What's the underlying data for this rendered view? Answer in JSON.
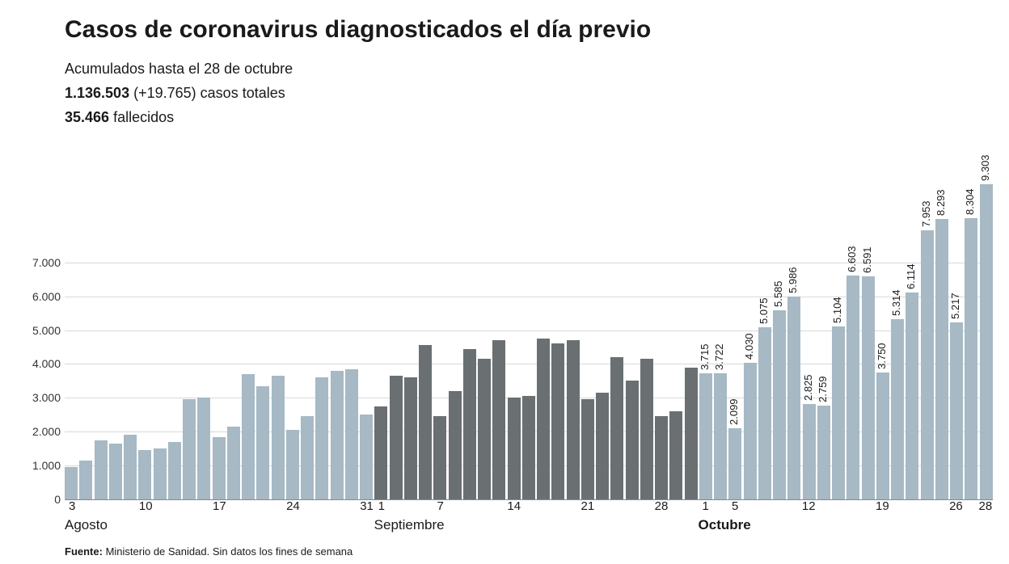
{
  "title": "Casos de coronavirus diagnosticados el día previo",
  "subtitle": {
    "line1": "Acumulados hasta el 28 de octubre",
    "total_cases": "1.136.503",
    "increment": "(+19.765)",
    "cases_suffix": "casos totales",
    "deaths": "35.466",
    "deaths_suffix": "fallecidos"
  },
  "chart": {
    "type": "bar",
    "y": {
      "min": 0,
      "max": 9500,
      "ticks": [
        0,
        1000,
        2000,
        3000,
        4000,
        5000,
        6000,
        7000
      ],
      "tick_labels": [
        "0",
        "1.000",
        "2.000",
        "3.000",
        "4.000",
        "5.000",
        "6.000",
        "7.000"
      ]
    },
    "colors": {
      "light": "#a6b9c4",
      "dark": "#6a6f72",
      "grid": "#d9d9d9",
      "text": "#1a1a1a",
      "background": "#ffffff"
    },
    "label_fontsize": 13,
    "axis_fontsize": 15,
    "title_fontsize": 30,
    "subtitle_fontsize": 18,
    "bars": [
      {
        "month": "Agosto",
        "day": 3,
        "value": 950,
        "color": "light"
      },
      {
        "month": "Agosto",
        "day": 4,
        "value": 1150,
        "color": "light"
      },
      {
        "month": "Agosto",
        "day": 5,
        "value": 1750,
        "color": "light"
      },
      {
        "month": "Agosto",
        "day": 6,
        "value": 1650,
        "color": "light"
      },
      {
        "month": "Agosto",
        "day": 7,
        "value": 1900,
        "color": "light"
      },
      {
        "month": "Agosto",
        "day": 10,
        "value": 1450,
        "color": "light"
      },
      {
        "month": "Agosto",
        "day": 11,
        "value": 1500,
        "color": "light"
      },
      {
        "month": "Agosto",
        "day": 12,
        "value": 1700,
        "color": "light"
      },
      {
        "month": "Agosto",
        "day": 13,
        "value": 2950,
        "color": "light"
      },
      {
        "month": "Agosto",
        "day": 14,
        "value": 3000,
        "color": "light"
      },
      {
        "month": "Agosto",
        "day": 17,
        "value": 1850,
        "color": "light"
      },
      {
        "month": "Agosto",
        "day": 18,
        "value": 2150,
        "color": "light"
      },
      {
        "month": "Agosto",
        "day": 19,
        "value": 3700,
        "color": "light"
      },
      {
        "month": "Agosto",
        "day": 20,
        "value": 3350,
        "color": "light"
      },
      {
        "month": "Agosto",
        "day": 21,
        "value": 3650,
        "color": "light"
      },
      {
        "month": "Agosto",
        "day": 24,
        "value": 2050,
        "color": "light"
      },
      {
        "month": "Agosto",
        "day": 25,
        "value": 2450,
        "color": "light"
      },
      {
        "month": "Agosto",
        "day": 26,
        "value": 3600,
        "color": "light"
      },
      {
        "month": "Agosto",
        "day": 27,
        "value": 3800,
        "color": "light"
      },
      {
        "month": "Agosto",
        "day": 28,
        "value": 3850,
        "color": "light"
      },
      {
        "month": "Agosto",
        "day": 31,
        "value": 2500,
        "color": "light"
      },
      {
        "month": "Septiembre",
        "day": 1,
        "value": 2750,
        "color": "dark"
      },
      {
        "month": "Septiembre",
        "day": 2,
        "value": 3650,
        "color": "dark"
      },
      {
        "month": "Septiembre",
        "day": 3,
        "value": 3600,
        "color": "dark"
      },
      {
        "month": "Septiembre",
        "day": 4,
        "value": 4550,
        "color": "dark"
      },
      {
        "month": "Septiembre",
        "day": 7,
        "value": 2450,
        "color": "dark"
      },
      {
        "month": "Septiembre",
        "day": 8,
        "value": 3200,
        "color": "dark"
      },
      {
        "month": "Septiembre",
        "day": 9,
        "value": 4450,
        "color": "dark"
      },
      {
        "month": "Septiembre",
        "day": 10,
        "value": 4150,
        "color": "dark"
      },
      {
        "month": "Septiembre",
        "day": 11,
        "value": 4700,
        "color": "dark"
      },
      {
        "month": "Septiembre",
        "day": 14,
        "value": 3000,
        "color": "dark"
      },
      {
        "month": "Septiembre",
        "day": 15,
        "value": 3050,
        "color": "dark"
      },
      {
        "month": "Septiembre",
        "day": 16,
        "value": 4750,
        "color": "dark"
      },
      {
        "month": "Septiembre",
        "day": 17,
        "value": 4600,
        "color": "dark"
      },
      {
        "month": "Septiembre",
        "day": 18,
        "value": 4700,
        "color": "dark"
      },
      {
        "month": "Septiembre",
        "day": 21,
        "value": 2950,
        "color": "dark"
      },
      {
        "month": "Septiembre",
        "day": 22,
        "value": 3150,
        "color": "dark"
      },
      {
        "month": "Septiembre",
        "day": 23,
        "value": 4200,
        "color": "dark"
      },
      {
        "month": "Septiembre",
        "day": 24,
        "value": 3500,
        "color": "dark"
      },
      {
        "month": "Septiembre",
        "day": 25,
        "value": 4150,
        "color": "dark"
      },
      {
        "month": "Septiembre",
        "day": 28,
        "value": 2450,
        "color": "dark"
      },
      {
        "month": "Septiembre",
        "day": 29,
        "value": 2600,
        "color": "dark"
      },
      {
        "month": "Septiembre",
        "day": 30,
        "value": 3900,
        "color": "dark"
      },
      {
        "month": "Octubre",
        "day": 1,
        "value": 3715,
        "color": "light",
        "label": "3.715"
      },
      {
        "month": "Octubre",
        "day": 2,
        "value": 3722,
        "color": "light",
        "label": "3.722"
      },
      {
        "month": "Octubre",
        "day": 5,
        "value": 2099,
        "color": "light",
        "label": "2.099"
      },
      {
        "month": "Octubre",
        "day": 6,
        "value": 4030,
        "color": "light",
        "label": "4.030"
      },
      {
        "month": "Octubre",
        "day": 7,
        "value": 5075,
        "color": "light",
        "label": "5.075"
      },
      {
        "month": "Octubre",
        "day": 8,
        "value": 5585,
        "color": "light",
        "label": "5.585"
      },
      {
        "month": "Octubre",
        "day": 9,
        "value": 5986,
        "color": "light",
        "label": "5.986"
      },
      {
        "month": "Octubre",
        "day": 12,
        "value": 2825,
        "color": "light",
        "label": "2.825"
      },
      {
        "month": "Octubre",
        "day": 13,
        "value": 2759,
        "color": "light",
        "label": "2.759"
      },
      {
        "month": "Octubre",
        "day": 14,
        "value": 5104,
        "color": "light",
        "label": "5.104"
      },
      {
        "month": "Octubre",
        "day": 15,
        "value": 6603,
        "color": "light",
        "label": "6.603"
      },
      {
        "month": "Octubre",
        "day": 16,
        "value": 6591,
        "color": "light",
        "label": "6.591"
      },
      {
        "month": "Octubre",
        "day": 19,
        "value": 3750,
        "color": "light",
        "label": "3.750"
      },
      {
        "month": "Octubre",
        "day": 20,
        "value": 5314,
        "color": "light",
        "label": "5.314"
      },
      {
        "month": "Octubre",
        "day": 21,
        "value": 6114,
        "color": "light",
        "label": "6.114"
      },
      {
        "month": "Octubre",
        "day": 22,
        "value": 7953,
        "color": "light",
        "label": "7.953"
      },
      {
        "month": "Octubre",
        "day": 23,
        "value": 8293,
        "color": "light",
        "label": "8.293"
      },
      {
        "month": "Octubre",
        "day": 26,
        "value": 5217,
        "color": "light",
        "label": "5.217"
      },
      {
        "month": "Octubre",
        "day": 27,
        "value": 8304,
        "color": "light",
        "label": "8.304"
      },
      {
        "month": "Octubre",
        "day": 28,
        "value": 9303,
        "color": "light",
        "label": "9.303"
      }
    ],
    "x_ticks": [
      {
        "idx": 0,
        "label": "3"
      },
      {
        "idx": 5,
        "label": "10"
      },
      {
        "idx": 10,
        "label": "17"
      },
      {
        "idx": 15,
        "label": "24"
      },
      {
        "idx": 20,
        "label": "31"
      },
      {
        "idx": 21,
        "label": "1"
      },
      {
        "idx": 25,
        "label": "7"
      },
      {
        "idx": 30,
        "label": "14"
      },
      {
        "idx": 35,
        "label": "21"
      },
      {
        "idx": 40,
        "label": "28"
      },
      {
        "idx": 43,
        "label": "1"
      },
      {
        "idx": 45,
        "label": "5"
      },
      {
        "idx": 50,
        "label": "12"
      },
      {
        "idx": 55,
        "label": "19"
      },
      {
        "idx": 60,
        "label": "26"
      },
      {
        "idx": 62,
        "label": "28"
      }
    ],
    "months": [
      {
        "idx": 0,
        "label": "Agosto",
        "bold": false
      },
      {
        "idx": 21,
        "label": "Septiembre",
        "bold": false
      },
      {
        "idx": 43,
        "label": "Octubre",
        "bold": true
      }
    ]
  },
  "source": {
    "label": "Fuente:",
    "text": "Ministerio de Sanidad. Sin datos los fines de semana"
  }
}
